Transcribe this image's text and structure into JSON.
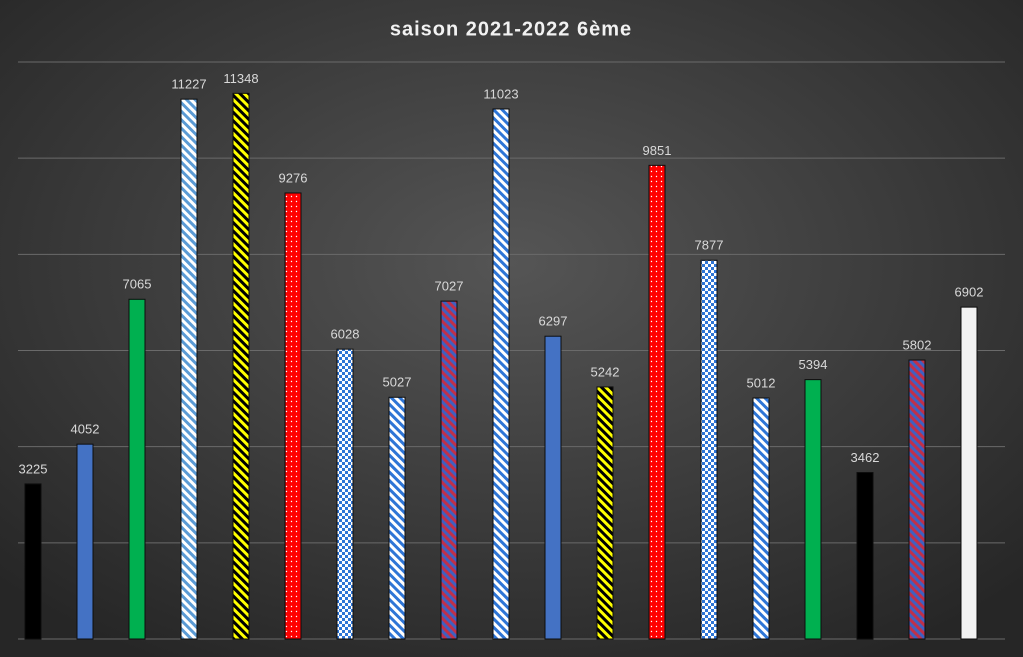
{
  "chart_data": {
    "type": "bar",
    "title": "saison 2021-2022 6ème",
    "categories": [
      null,
      null,
      null,
      null,
      null,
      null,
      null,
      null,
      null,
      null,
      null,
      null,
      null,
      null,
      null,
      null,
      null,
      null,
      null
    ],
    "values": [
      3225,
      4052,
      7065,
      11227,
      11348,
      9276,
      6028,
      5027,
      7027,
      11023,
      6297,
      5242,
      9851,
      7877,
      5012,
      5394,
      3462,
      5802,
      6902
    ],
    "colors": [
      "#000000",
      "#4472c4",
      "#00b050",
      "#ffffff",
      "#ffff00",
      "#ff0000",
      "#ffffff",
      "#ffffff",
      "#4060c0",
      "#ffffff",
      "#4472c4",
      "#ffff00",
      "#ff0000",
      "#ffffff",
      "#ffffff",
      "#00b050",
      "#000000",
      "#4060c0",
      "#f2f2f2"
    ],
    "patterns": [
      "solid",
      "solid",
      "solid",
      "stripes",
      "stripes",
      "dots",
      "checker",
      "stripes",
      "stripes",
      "stripes",
      "solid",
      "stripes",
      "dots",
      "checker",
      "stripes",
      "solid",
      "solid",
      "stripes",
      "solid"
    ],
    "pattern_colors": [
      null,
      null,
      null,
      "#5b9bd5",
      "#000000",
      "#ffffff",
      "#2e75d6",
      "#2e75d6",
      "#c0304a",
      "#2e75d6",
      null,
      "#000000",
      "#ffffff",
      "#2e75d6",
      "#2e75d6",
      null,
      null,
      "#c0304a",
      null
    ],
    "ylim": [
      0,
      12000
    ],
    "yticks": [
      0,
      2000,
      4000,
      6000,
      8000,
      10000,
      12000
    ],
    "grid": true
  }
}
